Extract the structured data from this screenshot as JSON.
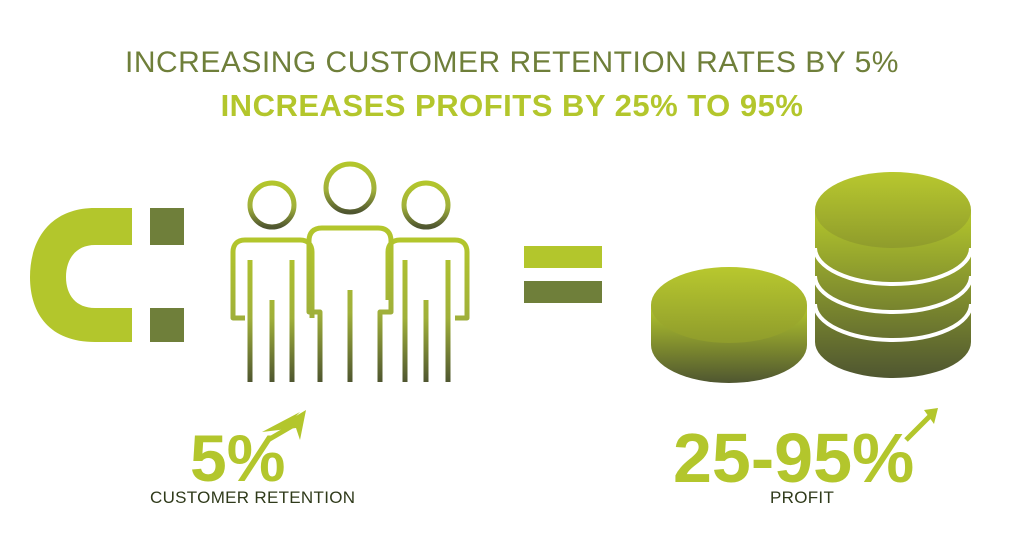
{
  "header": {
    "line1": "INCREASING CUSTOMER RETENTION RATES BY 5%",
    "line2": "INCREASES PROFITS BY 25% TO 95%"
  },
  "stats": {
    "retention_value": "5%",
    "retention_label": "CUSTOMER RETENTION",
    "profit_value": "25-95%",
    "profit_label": "PROFIT"
  },
  "colors": {
    "accent": "#b3c62c",
    "dark_olive": "#6f7f3a",
    "gradient_dark": "#4f5630"
  },
  "icons": [
    "magnet-icon",
    "people-icon",
    "equals-icon",
    "coins-icon",
    "arrow-up-icon"
  ]
}
